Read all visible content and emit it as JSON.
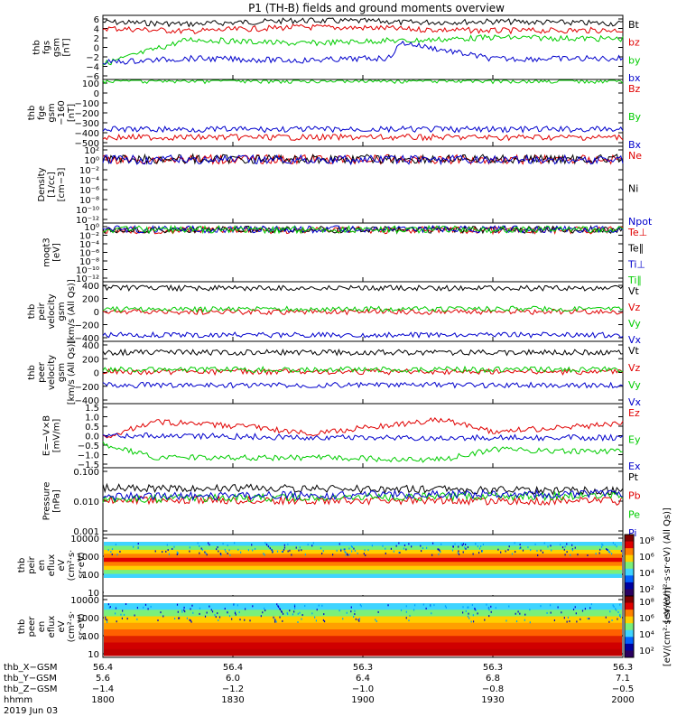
{
  "title": "P1 (TH-B) fields and ground moments overview",
  "colors": {
    "black": "#000000",
    "red": "#e00000",
    "green": "#00cc00",
    "blue": "#0000cc"
  },
  "chart_data": [
    {
      "type": "line",
      "id": "fgs_gsm",
      "ylabel": [
        "thb",
        "fgs",
        "gsm",
        "[nT]"
      ],
      "yticks": [
        "6",
        "4",
        "2",
        "0",
        "−2",
        "−4",
        "−6"
      ],
      "ylim": [
        -6,
        6.5
      ],
      "x_hours": [
        18.0,
        18.33,
        18.75,
        19.1,
        19.15,
        19.5,
        20.0
      ],
      "series": [
        {
          "name": "Bt",
          "color": "#000000",
          "values": [
            5.2,
            4.8,
            5.5,
            5.3,
            5.1,
            5.3,
            4.9
          ]
        },
        {
          "name": "bz",
          "color": "#e00000",
          "values": [
            4.0,
            3.4,
            4.2,
            4.0,
            3.8,
            3.5,
            3.6
          ]
        },
        {
          "name": "by",
          "color": "#00cc00",
          "values": [
            -3.0,
            1.8,
            1.0,
            1.6,
            1.5,
            2.2,
            1.9
          ]
        },
        {
          "name": "bx",
          "color": "#0000cc",
          "values": [
            -2.7,
            -1.9,
            -2.3,
            -1.8,
            1.2,
            -2.0,
            -1.9
          ]
        }
      ]
    },
    {
      "type": "line",
      "id": "fge_gsm",
      "ylabel": [
        "thb",
        "fge",
        "gsm",
        "−160",
        "[nT]"
      ],
      "yticks": [
        "100",
        "0",
        "−100",
        "−200",
        "−300",
        "−400",
        "−500"
      ],
      "ylim": [
        -560,
        110
      ],
      "series": [
        {
          "name": "Bz",
          "color": "#e00000",
          "values": [
            -470,
            -470
          ]
        },
        {
          "name": "By",
          "color": "#00cc00",
          "values": [
            100,
            100
          ]
        },
        {
          "name": "Bx",
          "color": "#0000cc",
          "values": [
            -390,
            -390
          ]
        }
      ]
    },
    {
      "type": "line",
      "id": "density",
      "ylabel": [
        "Density",
        "[1/cc]",
        "[cm−3]"
      ],
      "yticks": [
        "10²",
        "10⁰",
        "10⁻²",
        "10⁻⁴",
        "10⁻⁶",
        "10⁻⁸",
        "10⁻¹⁰",
        "10⁻¹²"
      ],
      "ylim": [
        -13,
        2.4
      ],
      "log": true,
      "series": [
        {
          "name": "Ne",
          "color": "#e00000",
          "values": [
            0.6,
            0.6
          ]
        },
        {
          "name": "Ni",
          "color": "#000000",
          "values": [
            0.7,
            0.7
          ]
        },
        {
          "name": "Npot",
          "color": "#0000cc",
          "values": [
            0.5,
            0.5
          ]
        }
      ]
    },
    {
      "type": "line",
      "id": "temperature",
      "ylabel": [
        "moqt3",
        "[eV]"
      ],
      "yticks": [
        "10⁰",
        "10⁻²",
        "10⁻⁴",
        "10⁻⁶",
        "10⁻⁸",
        "10⁻¹⁰",
        "10⁻¹²"
      ],
      "ylim": [
        -13,
        1.2
      ],
      "log": true,
      "series": [
        {
          "name": "Te⊥",
          "color": "#e00000",
          "values": [
            0.3,
            0.3
          ]
        },
        {
          "name": "Te∥",
          "color": "#000000",
          "values": [
            0.4,
            0.4
          ]
        },
        {
          "name": "Ti⊥",
          "color": "#0000cc",
          "values": [
            0.5,
            0.5
          ]
        },
        {
          "name": "Ti∥",
          "color": "#00cc00",
          "values": [
            0.45,
            0.45
          ]
        }
      ]
    },
    {
      "type": "line",
      "id": "peir_velocity",
      "ylabel": [
        "thb",
        "peir",
        "velocity",
        "gsm",
        "[km/s (All Qs)]"
      ],
      "yticks": [
        "400",
        "200",
        "0",
        "−200",
        "−400"
      ],
      "ylim": [
        -420,
        420
      ],
      "series": [
        {
          "name": "Vt",
          "color": "#000000",
          "values": [
            330,
            330
          ]
        },
        {
          "name": "Vz",
          "color": "#e00000",
          "values": [
            -5,
            -5
          ]
        },
        {
          "name": "Vy",
          "color": "#00cc00",
          "values": [
            30,
            40
          ]
        },
        {
          "name": "Vx",
          "color": "#0000cc",
          "values": [
            -330,
            -330
          ]
        }
      ]
    },
    {
      "type": "line",
      "id": "peer_velocity",
      "ylabel": [
        "thb",
        "peer",
        "velocity",
        "gsm",
        "[km/s (All Qs)]"
      ],
      "yticks": [
        "400",
        "200",
        "0",
        "−200",
        "−400"
      ],
      "ylim": [
        -420,
        420
      ],
      "series": [
        {
          "name": "Vt",
          "color": "#000000",
          "values": [
            270,
            270
          ]
        },
        {
          "name": "Vz",
          "color": "#e00000",
          "values": [
            10,
            10
          ]
        },
        {
          "name": "Vy",
          "color": "#00cc00",
          "values": [
            40,
            40
          ]
        },
        {
          "name": "Vx",
          "color": "#0000cc",
          "values": [
            -170,
            -170
          ]
        }
      ]
    },
    {
      "type": "line",
      "id": "efield",
      "ylabel": [
        "E=−V×B",
        "[mV/m]"
      ],
      "yticks": [
        "1.5",
        "1.0",
        "0.5",
        "0.0",
        "−0.5",
        "−1.0",
        "−1.5"
      ],
      "ylim": [
        -1.6,
        1.6
      ],
      "x_hours": [
        18.0,
        18.2,
        18.6,
        18.8,
        19.3,
        19.5,
        20.0
      ],
      "series": [
        {
          "name": "Ez",
          "color": "#e00000",
          "values": [
            -0.1,
            0.7,
            0.4,
            0.1,
            0.8,
            0.2,
            0.6
          ]
        },
        {
          "name": "Ey",
          "color": "#00cc00",
          "values": [
            -0.4,
            -1.1,
            -1.1,
            -1.1,
            -1.2,
            -0.7,
            -0.8
          ]
        },
        {
          "name": "Ex",
          "color": "#0000cc",
          "values": [
            0.0,
            0.0,
            -0.05,
            -0.1,
            -0.1,
            -0.1,
            -0.1
          ]
        }
      ]
    },
    {
      "type": "line",
      "id": "pressure",
      "ylabel": [
        "Pressure",
        "[nPa]"
      ],
      "yticks": [
        "0.100",
        "0.010",
        "0.001"
      ],
      "ylim": [
        -3.1,
        -0.9
      ],
      "log": true,
      "series": [
        {
          "name": "Pt",
          "color": "#000000",
          "values": [
            0.028,
            0.022
          ]
        },
        {
          "name": "Pb",
          "color": "#e00000",
          "values": [
            0.011,
            0.01
          ]
        },
        {
          "name": "Pe",
          "color": "#00cc00",
          "values": [
            0.012,
            0.015
          ]
        },
        {
          "name": "Pi",
          "color": "#0000cc",
          "values": [
            0.014,
            0.018
          ]
        }
      ]
    },
    {
      "type": "heatmap",
      "id": "peir_en_eflux",
      "ylabel": [
        "thb",
        "peir",
        "en",
        "eflux",
        "eV",
        "(cm²·s·",
        "sr·eV)"
      ],
      "yticks": [
        "10000",
        "1000",
        "100",
        "10"
      ],
      "zlabel": "[eV/(cm²·s·sr·eV) (All Qs)]",
      "ztick_labels": [
        "10⁸",
        "10⁶",
        "10⁴",
        "10²"
      ]
    },
    {
      "type": "heatmap",
      "id": "peer_en_eflux",
      "ylabel": [
        "thb",
        "peer",
        "en",
        "eflux",
        "eV",
        "(cm²·s·",
        "sr·eV)"
      ],
      "yticks": [
        "10000",
        "1000",
        "100",
        "10"
      ],
      "zlabel": "[eV/(cm²·s·sr·eV)]",
      "ztick_labels": [
        "10⁸",
        "10⁶",
        "10⁴",
        "10²"
      ]
    }
  ],
  "xaxis": {
    "row_labels": [
      "thb_X−GSM",
      "thb_Y−GSM",
      "thb_Z−GSM",
      "hhmm",
      "2019 Jun 03"
    ],
    "columns": [
      {
        "X": "56.4",
        "Y": "5.6",
        "Z": "−1.4",
        "hhmm": "1800"
      },
      {
        "X": "56.4",
        "Y": "6.0",
        "Z": "−1.2",
        "hhmm": "1830"
      },
      {
        "X": "56.3",
        "Y": "6.4",
        "Z": "−1.0",
        "hhmm": "1900"
      },
      {
        "X": "56.3",
        "Y": "6.8",
        "Z": "−0.8",
        "hhmm": "1930"
      },
      {
        "X": "56.3",
        "Y": "7.1",
        "Z": "−0.5",
        "hhmm": "2000"
      }
    ]
  }
}
